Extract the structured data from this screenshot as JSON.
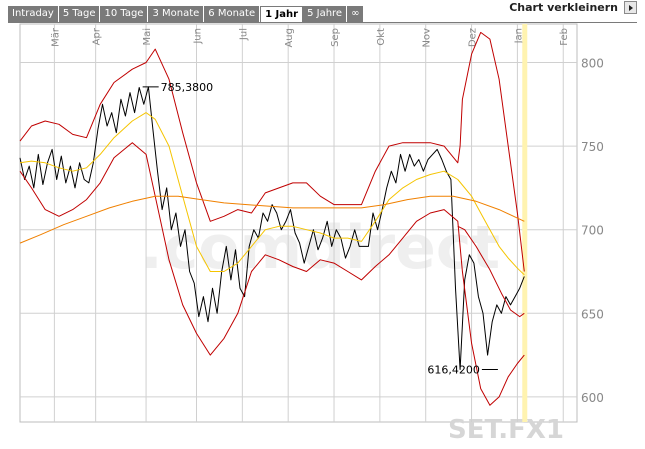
{
  "tabs": [
    {
      "label": "Intraday",
      "active": false
    },
    {
      "label": "5 Tage",
      "active": false
    },
    {
      "label": "10 Tage",
      "active": false
    },
    {
      "label": "3 Monate",
      "active": false
    },
    {
      "label": "6 Monate",
      "active": false
    },
    {
      "label": "1 Jahr",
      "active": true
    },
    {
      "label": "5 Jahre",
      "active": false
    },
    {
      "label": "∞",
      "active": false
    }
  ],
  "controls": {
    "shrink_label": "Chart verkleinern",
    "shrink_icon": "triangle-right-icon"
  },
  "chart_data": {
    "type": "line",
    "symbol": "SET.FX1",
    "watermark": ".comdirect",
    "months": [
      "Mär",
      "Apr",
      "Mai",
      "Jun",
      "Jul",
      "Aug",
      "Sep",
      "Okt",
      "Nov",
      "Dez",
      "Jan",
      "Feb"
    ],
    "month_positions": [
      2.1,
      3.0,
      4.1,
      5.2,
      6.2,
      7.2,
      8.2,
      9.2,
      10.2,
      11.2,
      12.2,
      13.2
    ],
    "x_range": [
      1.35,
      13.5
    ],
    "yticks": [
      600,
      650,
      700,
      750,
      800
    ],
    "ylim": [
      585,
      823
    ],
    "annotations": [
      {
        "label": "785,3800",
        "x": 4.2,
        "y": 785.38
      },
      {
        "label": "616,4200",
        "x": 11.6,
        "y": 616.42
      }
    ],
    "colors": {
      "price": "#000000",
      "bands": "#c00000",
      "ma_fast": "#f5c400",
      "ma_slow": "#f08000",
      "grid": "#d0d0d0"
    },
    "series": [
      {
        "role": "price",
        "points": [
          [
            1.35,
            743
          ],
          [
            1.45,
            730
          ],
          [
            1.55,
            738
          ],
          [
            1.65,
            725
          ],
          [
            1.75,
            745
          ],
          [
            1.85,
            727
          ],
          [
            1.95,
            740
          ],
          [
            2.05,
            748
          ],
          [
            2.15,
            730
          ],
          [
            2.25,
            744
          ],
          [
            2.35,
            728
          ],
          [
            2.45,
            738
          ],
          [
            2.55,
            725
          ],
          [
            2.65,
            740
          ],
          [
            2.75,
            730
          ],
          [
            2.85,
            728
          ],
          [
            2.95,
            740
          ],
          [
            3.05,
            760
          ],
          [
            3.15,
            775
          ],
          [
            3.25,
            762
          ],
          [
            3.35,
            770
          ],
          [
            3.45,
            758
          ],
          [
            3.55,
            778
          ],
          [
            3.65,
            768
          ],
          [
            3.75,
            782
          ],
          [
            3.85,
            770
          ],
          [
            3.95,
            785
          ],
          [
            4.05,
            775
          ],
          [
            4.15,
            785.38
          ],
          [
            4.25,
            760
          ],
          [
            4.35,
            735
          ],
          [
            4.45,
            712
          ],
          [
            4.55,
            725
          ],
          [
            4.65,
            700
          ],
          [
            4.75,
            710
          ],
          [
            4.85,
            690
          ],
          [
            4.95,
            700
          ],
          [
            5.05,
            675
          ],
          [
            5.15,
            668
          ],
          [
            5.25,
            648
          ],
          [
            5.35,
            660
          ],
          [
            5.45,
            645
          ],
          [
            5.55,
            665
          ],
          [
            5.65,
            650
          ],
          [
            5.75,
            675
          ],
          [
            5.85,
            690
          ],
          [
            5.95,
            670
          ],
          [
            6.05,
            688
          ],
          [
            6.15,
            665
          ],
          [
            6.25,
            660
          ],
          [
            6.35,
            690
          ],
          [
            6.45,
            700
          ],
          [
            6.55,
            695
          ],
          [
            6.65,
            710
          ],
          [
            6.75,
            705
          ],
          [
            6.85,
            715
          ],
          [
            6.95,
            710
          ],
          [
            7.05,
            700
          ],
          [
            7.15,
            705
          ],
          [
            7.25,
            712
          ],
          [
            7.35,
            698
          ],
          [
            7.45,
            692
          ],
          [
            7.55,
            680
          ],
          [
            7.65,
            690
          ],
          [
            7.75,
            700
          ],
          [
            7.85,
            688
          ],
          [
            7.95,
            695
          ],
          [
            8.05,
            705
          ],
          [
            8.15,
            690
          ],
          [
            8.25,
            700
          ],
          [
            8.35,
            695
          ],
          [
            8.45,
            683
          ],
          [
            8.55,
            690
          ],
          [
            8.65,
            700
          ],
          [
            8.75,
            690
          ],
          [
            8.95,
            690
          ],
          [
            9.05,
            710
          ],
          [
            9.15,
            700
          ],
          [
            9.25,
            712
          ],
          [
            9.35,
            725
          ],
          [
            9.45,
            735
          ],
          [
            9.55,
            728
          ],
          [
            9.65,
            745
          ],
          [
            9.75,
            735
          ],
          [
            9.85,
            745
          ],
          [
            9.95,
            738
          ],
          [
            10.05,
            742
          ],
          [
            10.15,
            735
          ],
          [
            10.25,
            742
          ],
          [
            10.35,
            745
          ],
          [
            10.45,
            748
          ],
          [
            10.55,
            742
          ],
          [
            10.65,
            735
          ],
          [
            10.75,
            730
          ],
          [
            10.85,
            665
          ],
          [
            10.95,
            616.42
          ],
          [
            11.05,
            670
          ],
          [
            11.15,
            685
          ],
          [
            11.25,
            680
          ],
          [
            11.35,
            660
          ],
          [
            11.45,
            650
          ],
          [
            11.55,
            625
          ],
          [
            11.65,
            645
          ],
          [
            11.75,
            655
          ],
          [
            11.85,
            650
          ],
          [
            11.95,
            660
          ],
          [
            12.05,
            655
          ],
          [
            12.15,
            660
          ],
          [
            12.25,
            665
          ],
          [
            12.35,
            672
          ]
        ]
      },
      {
        "role": "upper-band",
        "points": [
          [
            1.35,
            753
          ],
          [
            1.6,
            762
          ],
          [
            1.9,
            765
          ],
          [
            2.2,
            763
          ],
          [
            2.5,
            757
          ],
          [
            2.8,
            755
          ],
          [
            3.1,
            775
          ],
          [
            3.4,
            788
          ],
          [
            3.8,
            796
          ],
          [
            4.1,
            800
          ],
          [
            4.3,
            808
          ],
          [
            4.6,
            790
          ],
          [
            4.9,
            758
          ],
          [
            5.2,
            728
          ],
          [
            5.5,
            705
          ],
          [
            5.8,
            708
          ],
          [
            6.1,
            712
          ],
          [
            6.4,
            710
          ],
          [
            6.7,
            722
          ],
          [
            7.0,
            725
          ],
          [
            7.3,
            728
          ],
          [
            7.6,
            728
          ],
          [
            7.9,
            720
          ],
          [
            8.2,
            715
          ],
          [
            8.5,
            715
          ],
          [
            8.8,
            715
          ],
          [
            9.1,
            735
          ],
          [
            9.4,
            750
          ],
          [
            9.7,
            752
          ],
          [
            10.0,
            752
          ],
          [
            10.3,
            752
          ],
          [
            10.6,
            750
          ],
          [
            10.9,
            740
          ],
          [
            10.95,
            750
          ],
          [
            11.0,
            778
          ],
          [
            11.2,
            805
          ],
          [
            11.4,
            818
          ],
          [
            11.6,
            814
          ],
          [
            11.8,
            790
          ],
          [
            12.0,
            750
          ],
          [
            12.2,
            710
          ],
          [
            12.35,
            675
          ]
        ]
      },
      {
        "role": "lower-band",
        "points": [
          [
            1.35,
            735
          ],
          [
            1.6,
            725
          ],
          [
            1.9,
            712
          ],
          [
            2.2,
            708
          ],
          [
            2.5,
            712
          ],
          [
            2.8,
            718
          ],
          [
            3.1,
            728
          ],
          [
            3.4,
            743
          ],
          [
            3.8,
            752
          ],
          [
            4.1,
            745
          ],
          [
            4.3,
            720
          ],
          [
            4.6,
            682
          ],
          [
            4.9,
            655
          ],
          [
            5.2,
            638
          ],
          [
            5.5,
            625
          ],
          [
            5.8,
            635
          ],
          [
            6.1,
            650
          ],
          [
            6.4,
            675
          ],
          [
            6.7,
            685
          ],
          [
            7.0,
            682
          ],
          [
            7.3,
            678
          ],
          [
            7.6,
            675
          ],
          [
            7.9,
            682
          ],
          [
            8.2,
            680
          ],
          [
            8.5,
            675
          ],
          [
            8.8,
            670
          ],
          [
            9.1,
            678
          ],
          [
            9.4,
            685
          ],
          [
            9.7,
            695
          ],
          [
            10.0,
            705
          ],
          [
            10.3,
            710
          ],
          [
            10.6,
            712
          ],
          [
            10.9,
            705
          ],
          [
            11.0,
            675
          ],
          [
            11.2,
            632
          ],
          [
            11.4,
            605
          ],
          [
            11.6,
            595
          ],
          [
            11.8,
            600
          ],
          [
            12.0,
            612
          ],
          [
            12.2,
            620
          ],
          [
            12.35,
            625
          ]
        ]
      },
      {
        "role": "ma-fast",
        "points": [
          [
            1.35,
            740
          ],
          [
            1.6,
            741
          ],
          [
            1.9,
            740
          ],
          [
            2.2,
            737
          ],
          [
            2.5,
            735
          ],
          [
            2.8,
            737
          ],
          [
            3.1,
            745
          ],
          [
            3.4,
            755
          ],
          [
            3.8,
            765
          ],
          [
            4.1,
            770
          ],
          [
            4.3,
            766
          ],
          [
            4.6,
            750
          ],
          [
            4.9,
            720
          ],
          [
            5.2,
            690
          ],
          [
            5.5,
            675
          ],
          [
            5.8,
            675
          ],
          [
            6.1,
            680
          ],
          [
            6.4,
            690
          ],
          [
            6.7,
            700
          ],
          [
            7.0,
            702
          ],
          [
            7.3,
            702
          ],
          [
            7.6,
            700
          ],
          [
            7.9,
            698
          ],
          [
            8.2,
            695
          ],
          [
            8.5,
            695
          ],
          [
            8.8,
            693
          ],
          [
            9.1,
            705
          ],
          [
            9.4,
            718
          ],
          [
            9.7,
            725
          ],
          [
            10.0,
            730
          ],
          [
            10.3,
            733
          ],
          [
            10.6,
            735
          ],
          [
            10.9,
            730
          ],
          [
            11.2,
            720
          ],
          [
            11.4,
            710
          ],
          [
            11.6,
            700
          ],
          [
            11.8,
            690
          ],
          [
            12.0,
            683
          ],
          [
            12.2,
            677
          ],
          [
            12.35,
            673
          ]
        ]
      },
      {
        "role": "upper-band",
        "points": [
          [
            10.9,
            702
          ],
          [
            11.05,
            700
          ],
          [
            11.3,
            690
          ],
          [
            11.6,
            676
          ],
          [
            11.85,
            662
          ],
          [
            12.05,
            652
          ],
          [
            12.25,
            648
          ],
          [
            12.35,
            650
          ]
        ]
      },
      {
        "role": "ma-slow",
        "points": [
          [
            1.35,
            692
          ],
          [
            1.8,
            697
          ],
          [
            2.3,
            703
          ],
          [
            2.8,
            708
          ],
          [
            3.3,
            713
          ],
          [
            3.8,
            717
          ],
          [
            4.3,
            720
          ],
          [
            4.8,
            720
          ],
          [
            5.3,
            718
          ],
          [
            5.8,
            716
          ],
          [
            6.3,
            715
          ],
          [
            6.8,
            714
          ],
          [
            7.3,
            713
          ],
          [
            7.8,
            713
          ],
          [
            8.3,
            713
          ],
          [
            8.8,
            713
          ],
          [
            9.3,
            715
          ],
          [
            9.8,
            718
          ],
          [
            10.3,
            720
          ],
          [
            10.8,
            720
          ],
          [
            11.3,
            717
          ],
          [
            11.8,
            712
          ],
          [
            12.35,
            705
          ]
        ]
      }
    ]
  }
}
